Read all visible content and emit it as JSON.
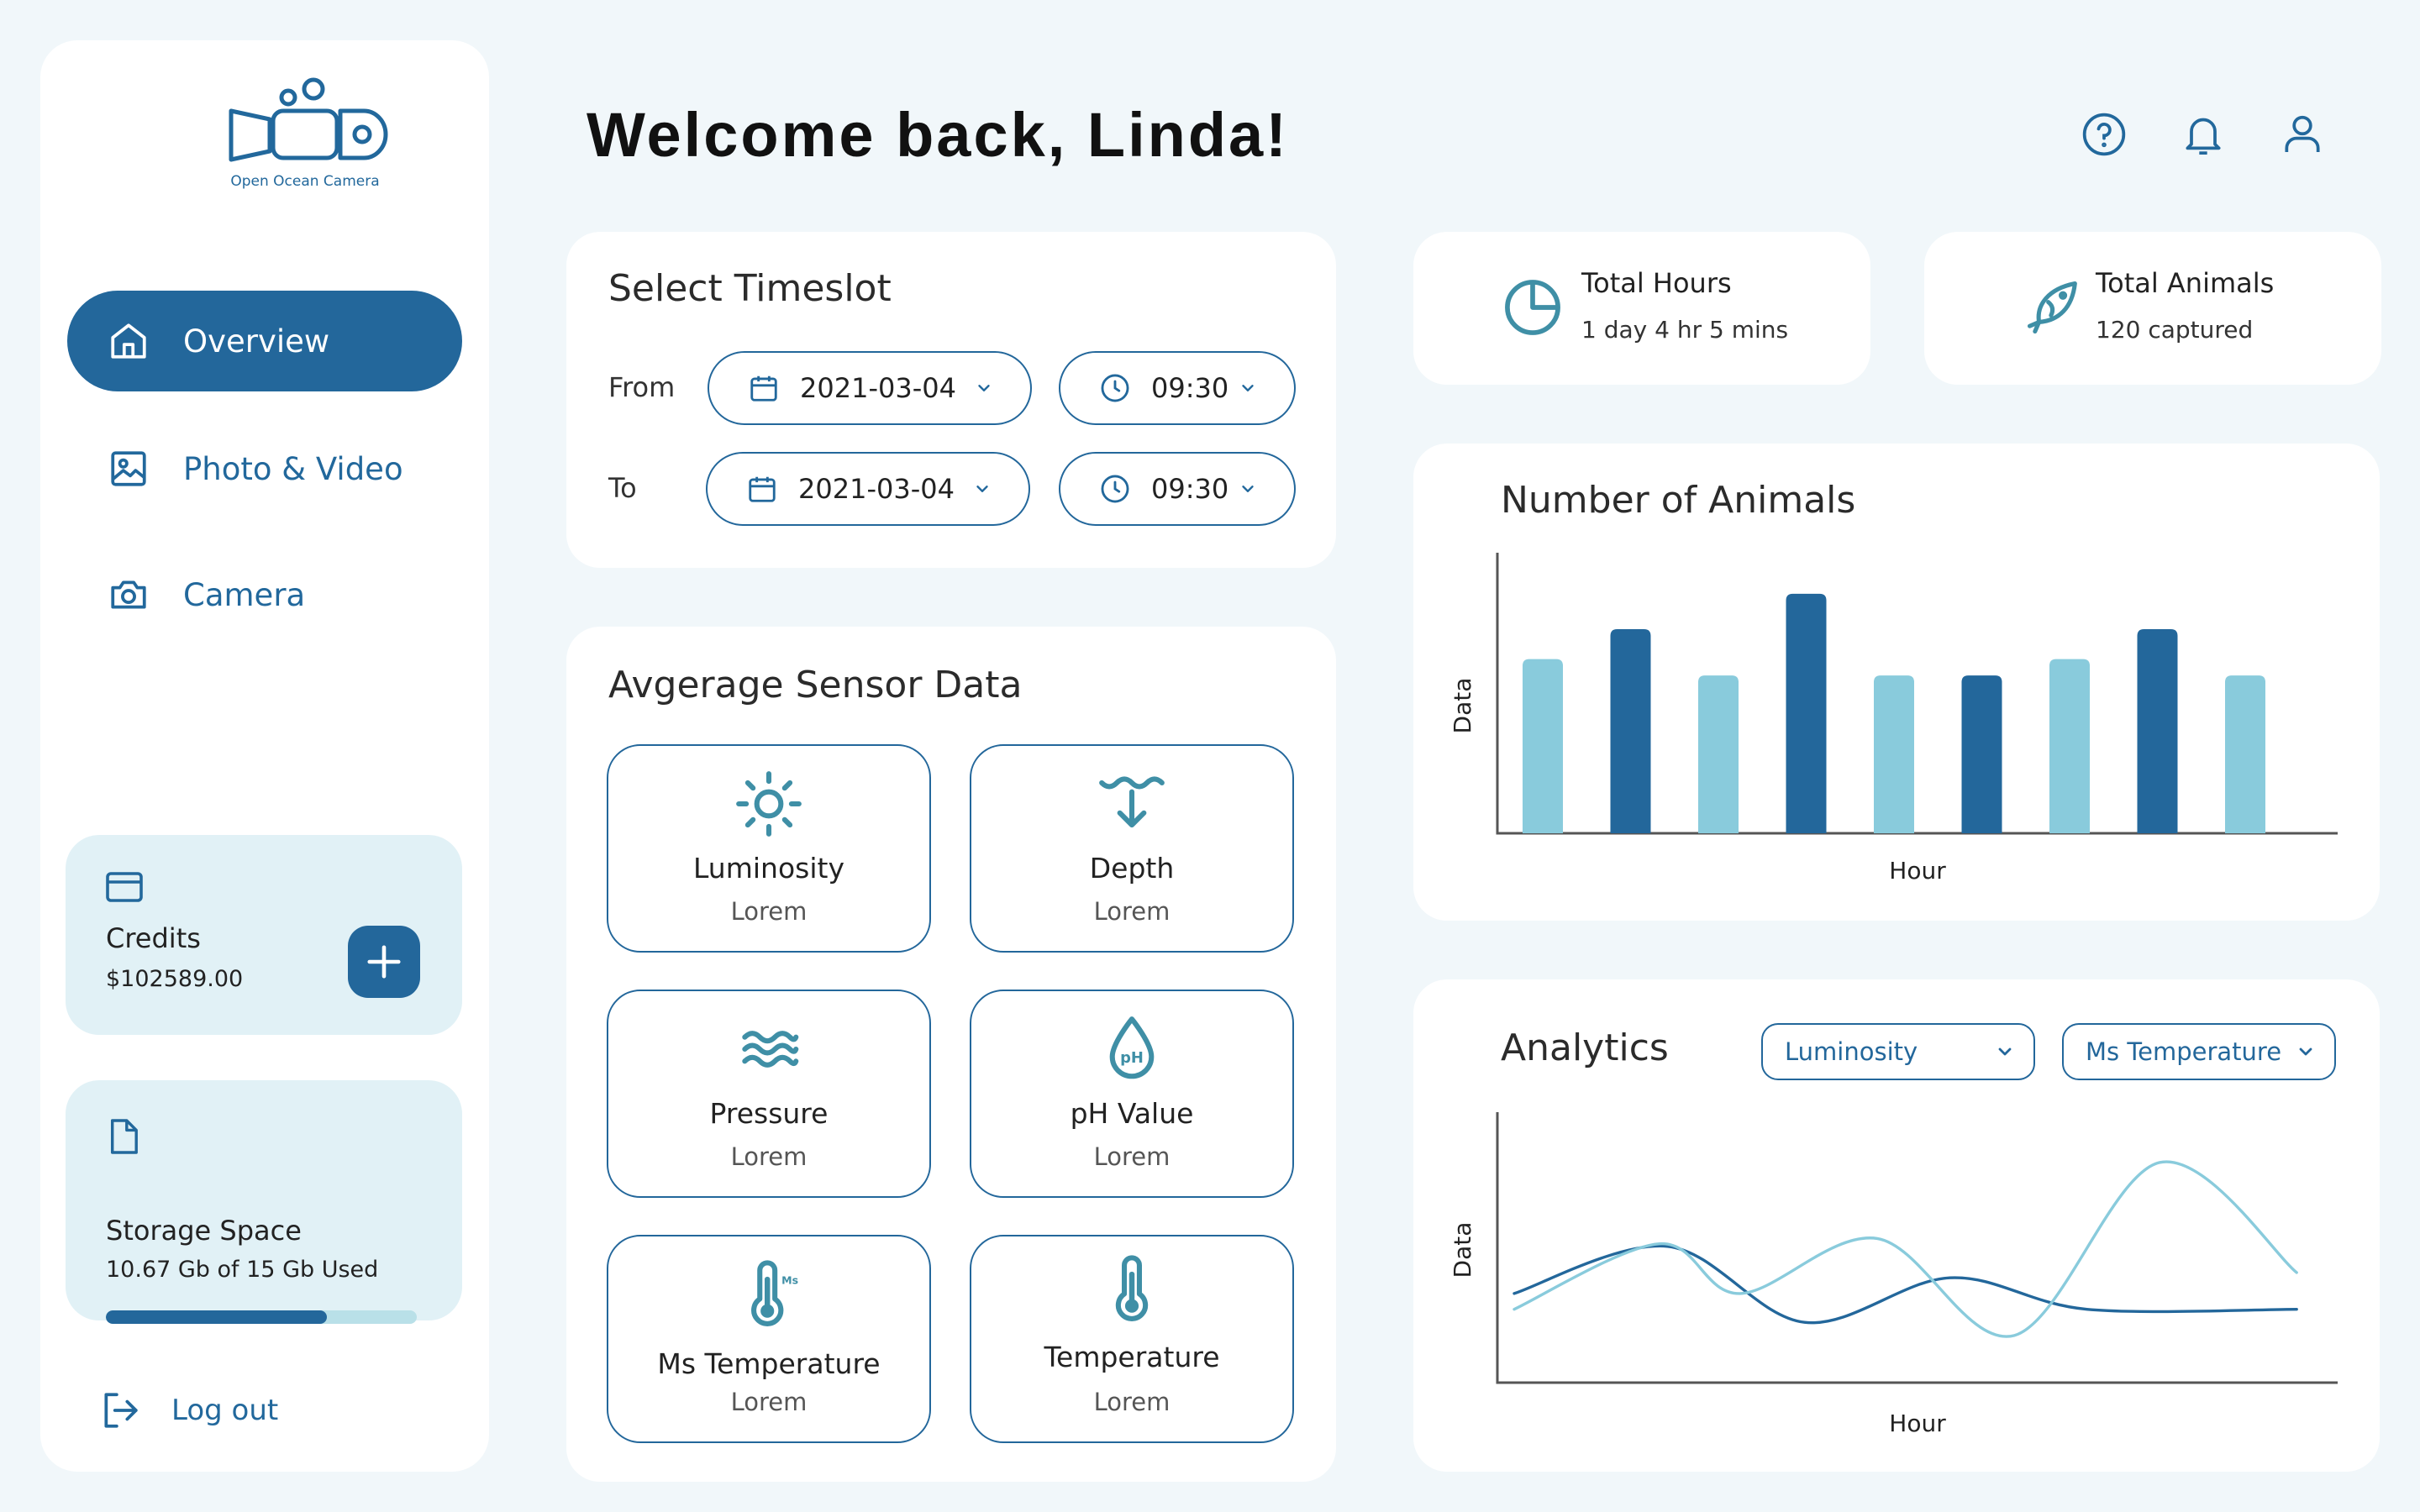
{
  "app": {
    "name": "Open Ocean Camera"
  },
  "header": {
    "welcome": "Welcome back, Linda!"
  },
  "sidebar": {
    "items": [
      {
        "label": "Overview",
        "active": true
      },
      {
        "label": "Photo & Video",
        "active": false
      },
      {
        "label": "Camera",
        "active": false
      }
    ],
    "credits": {
      "title": "Credits",
      "amount": "$102589.00"
    },
    "storage": {
      "title": "Storage Space",
      "usage": "10.67 Gb of 15 Gb Used",
      "used_fraction": 0.711
    },
    "logout": "Log out"
  },
  "timeslot": {
    "title": "Select Timeslot",
    "from": {
      "label": "From",
      "date": "2021-03-04",
      "time": "09:30"
    },
    "to": {
      "label": "To",
      "date": "2021-03-04",
      "time": "09:30"
    }
  },
  "sensor": {
    "title": "Avgerage Sensor Data",
    "tiles": [
      {
        "name": "Luminosity",
        "value": "Lorem",
        "icon": "sun-icon"
      },
      {
        "name": "Depth",
        "value": "Lorem",
        "icon": "depth-icon"
      },
      {
        "name": "Pressure",
        "value": "Lorem",
        "icon": "waves-icon"
      },
      {
        "name": "pH Value",
        "value": "Lorem",
        "icon": "ph-drop-icon",
        "icon_text": "pH"
      },
      {
        "name": "Ms Temperature",
        "value": "Lorem",
        "icon": "ms-thermometer-icon",
        "icon_text": "Ms"
      },
      {
        "name": "Temperature",
        "value": "Lorem",
        "icon": "thermometer-icon"
      }
    ]
  },
  "stats": {
    "hours": {
      "title": "Total Hours",
      "value": "1 day 4 hr 5 mins"
    },
    "animals": {
      "title": "Total Animals",
      "value": "120 captured"
    }
  },
  "colors": {
    "primary": "#23679b",
    "light": "#89cbdc",
    "pale": "#e1f1f6",
    "background": "#f1f7fa"
  },
  "chart_data": [
    {
      "type": "bar",
      "title": "Number of Animals",
      "xlabel": "Hour",
      "ylabel": "Data",
      "ylim": [
        0,
        10
      ],
      "values": [
        6.4,
        7.5,
        5.8,
        8.8,
        5.8,
        5.8,
        6.4,
        7.5,
        5.8
      ],
      "bar_colors": [
        "#89cbdc",
        "#23679b",
        "#89cbdc",
        "#23679b",
        "#89cbdc",
        "#23679b",
        "#89cbdc",
        "#23679b",
        "#89cbdc"
      ]
    },
    {
      "type": "line",
      "title": "Analytics",
      "xlabel": "Hour",
      "ylabel": "Data",
      "ylim": [
        0,
        10
      ],
      "selectors": [
        "Luminosity",
        "Ms Temperature"
      ],
      "series": [
        {
          "color": "#23679b",
          "x": [
            0,
            1.9,
            3.6,
            5.4,
            7.1,
            9.7
          ],
          "y": [
            3.4,
            5.2,
            2.3,
            4.0,
            2.8,
            2.8
          ]
        },
        {
          "color": "#89cbdc",
          "x": [
            0,
            1.8,
            2.8,
            4.5,
            6.2,
            8.0,
            9.7
          ],
          "y": [
            2.8,
            5.3,
            3.4,
            5.5,
            1.8,
            8.4,
            4.2
          ]
        }
      ]
    }
  ]
}
